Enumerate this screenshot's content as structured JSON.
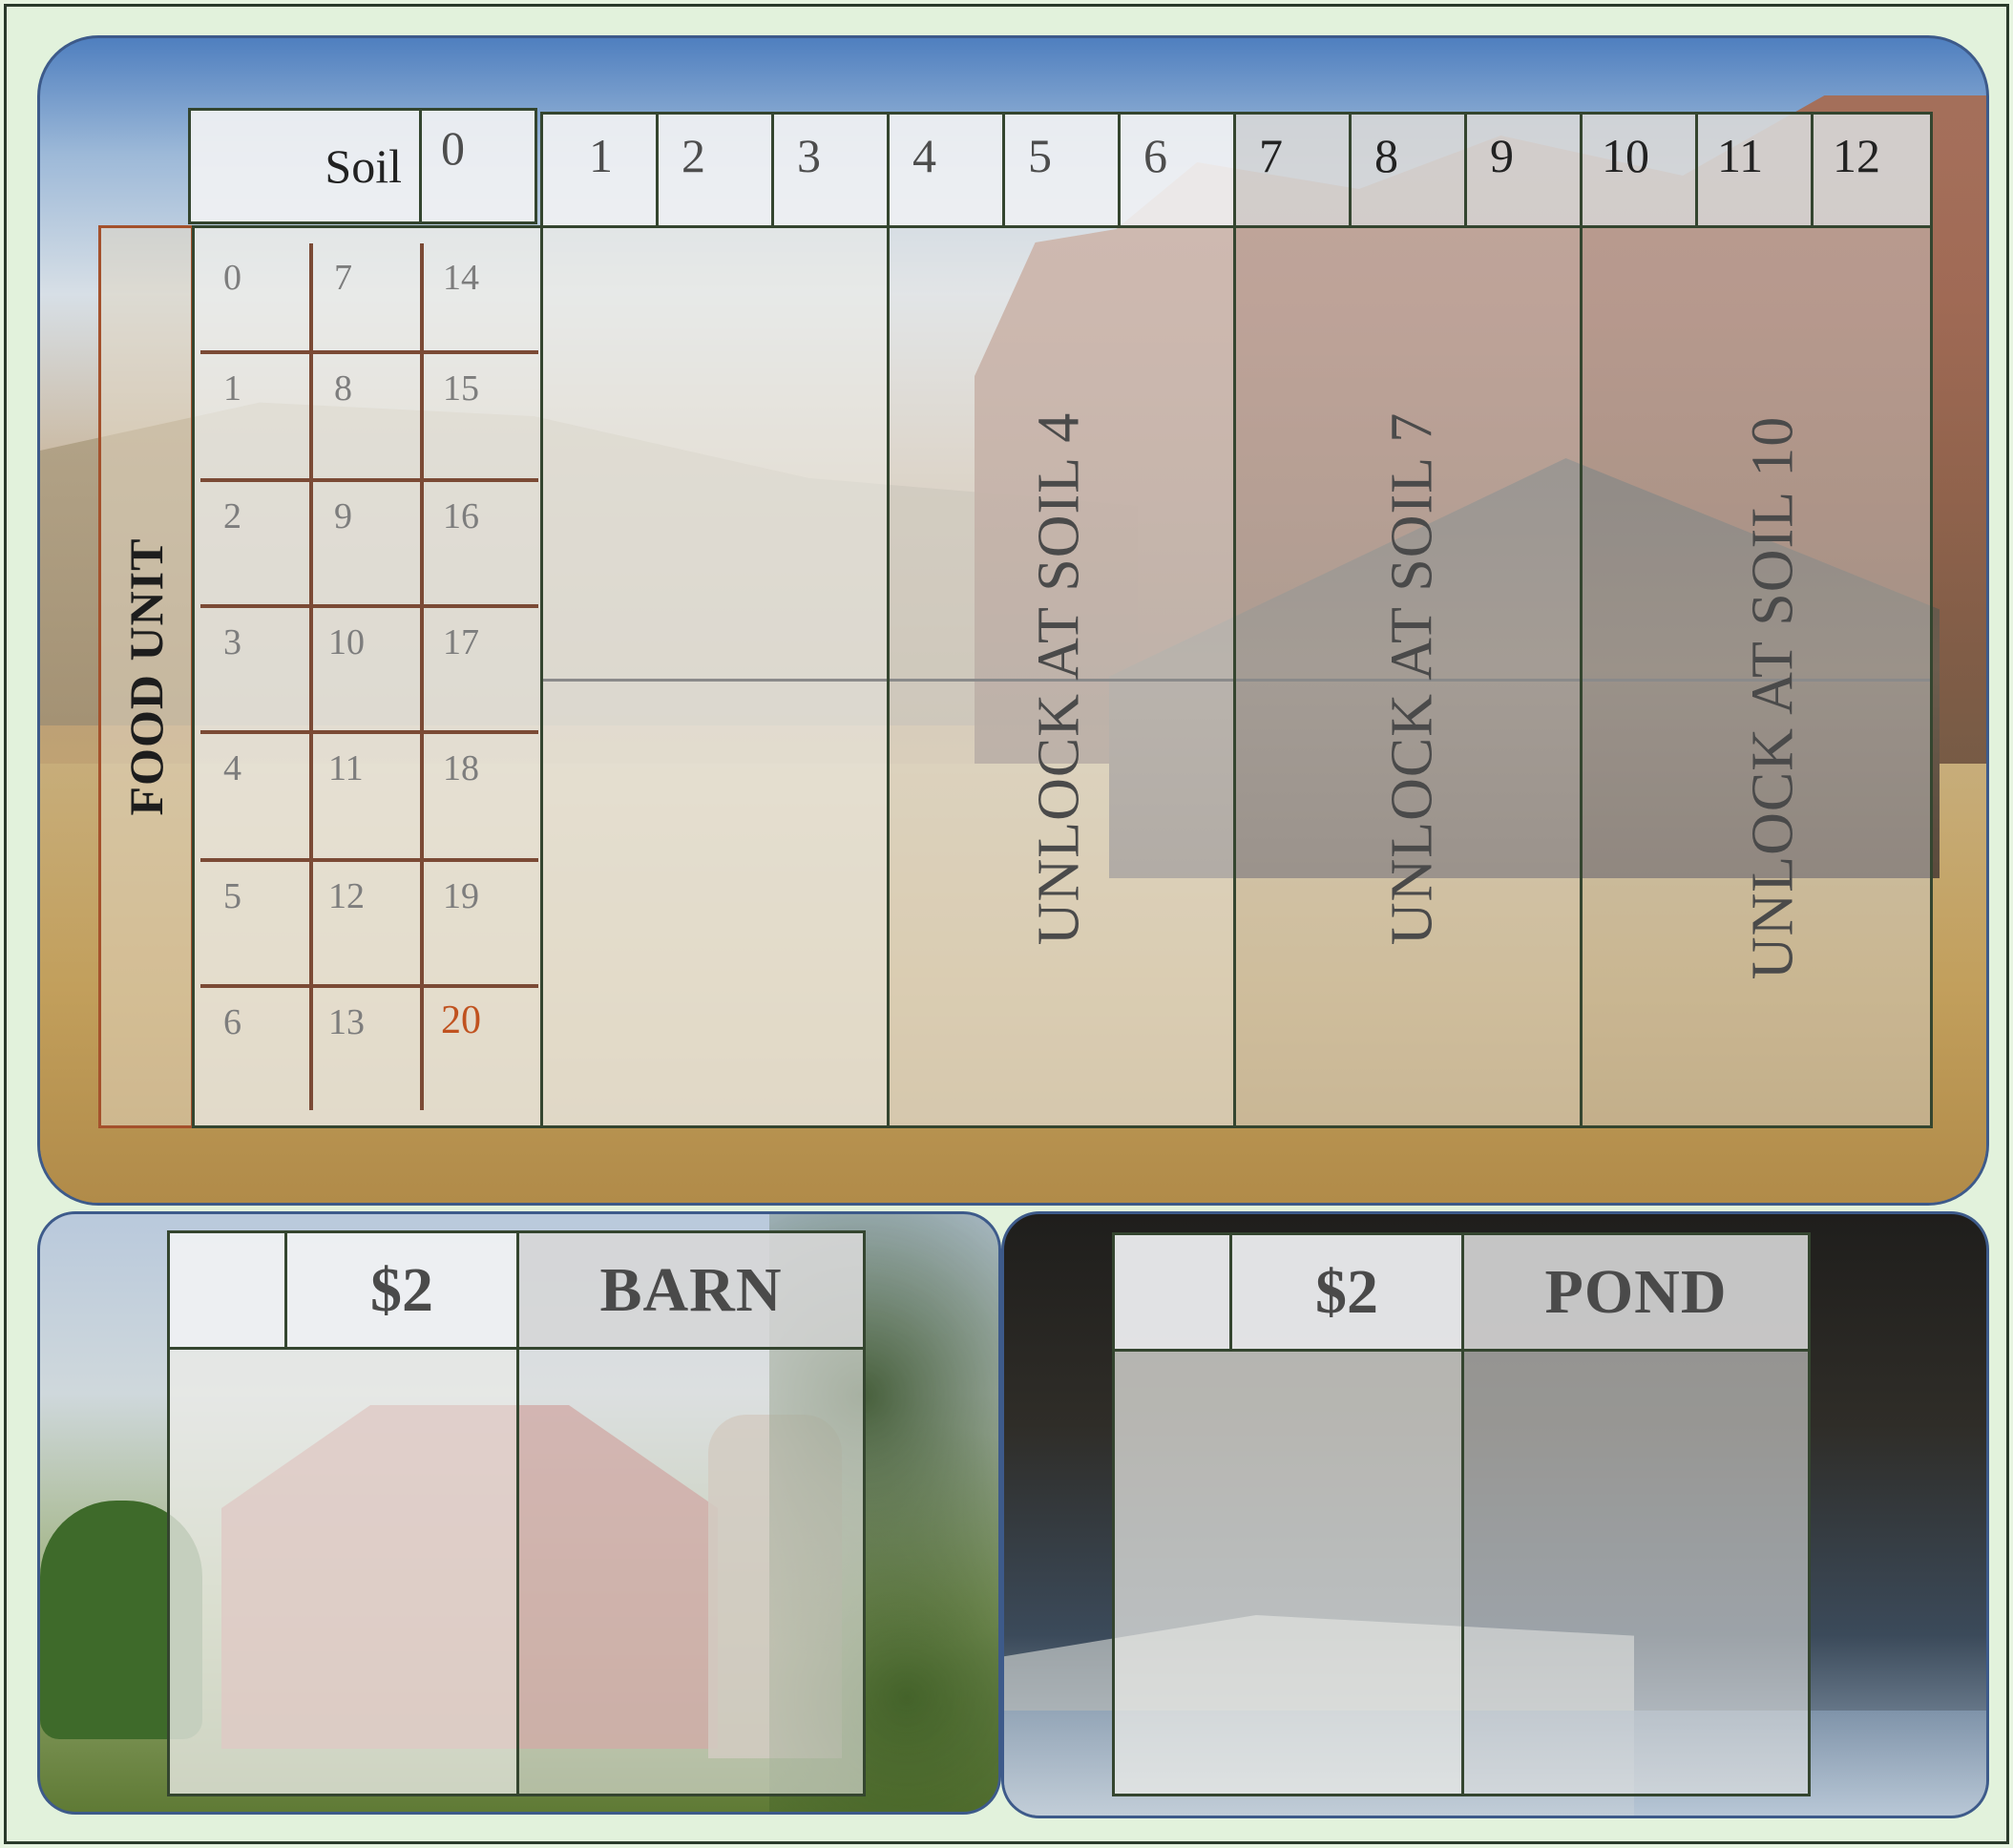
{
  "board": {
    "soil_label": "Soil",
    "soil_levels": [
      "0",
      "1",
      "2",
      "3",
      "4",
      "5",
      "6",
      "7",
      "8",
      "9",
      "10",
      "11",
      "12"
    ],
    "food_unit_label": "FOOD UNIT",
    "food_track": {
      "columns": [
        [
          "0",
          "1",
          "2",
          "3",
          "4",
          "5",
          "6"
        ],
        [
          "7",
          "8",
          "9",
          "10",
          "11",
          "12",
          "13"
        ],
        [
          "14",
          "15",
          "16",
          "17",
          "18",
          "19",
          "20"
        ]
      ]
    },
    "unlocks": [
      {
        "label": "UNLOCK AT SOIL 4"
      },
      {
        "label": "UNLOCK AT SOIL 7"
      },
      {
        "label": "UNLOCK AT SOIL 10"
      }
    ]
  },
  "barn_panel": {
    "price": "$2",
    "title": "BARN"
  },
  "pond_panel": {
    "price": "$2",
    "title": "POND"
  },
  "colors": {
    "grid_border": "#34452f",
    "food_border": "#a4512c",
    "track_line": "#7b4a35",
    "highlight_number": "#c0521f",
    "panel_border": "#3d5a8a"
  }
}
